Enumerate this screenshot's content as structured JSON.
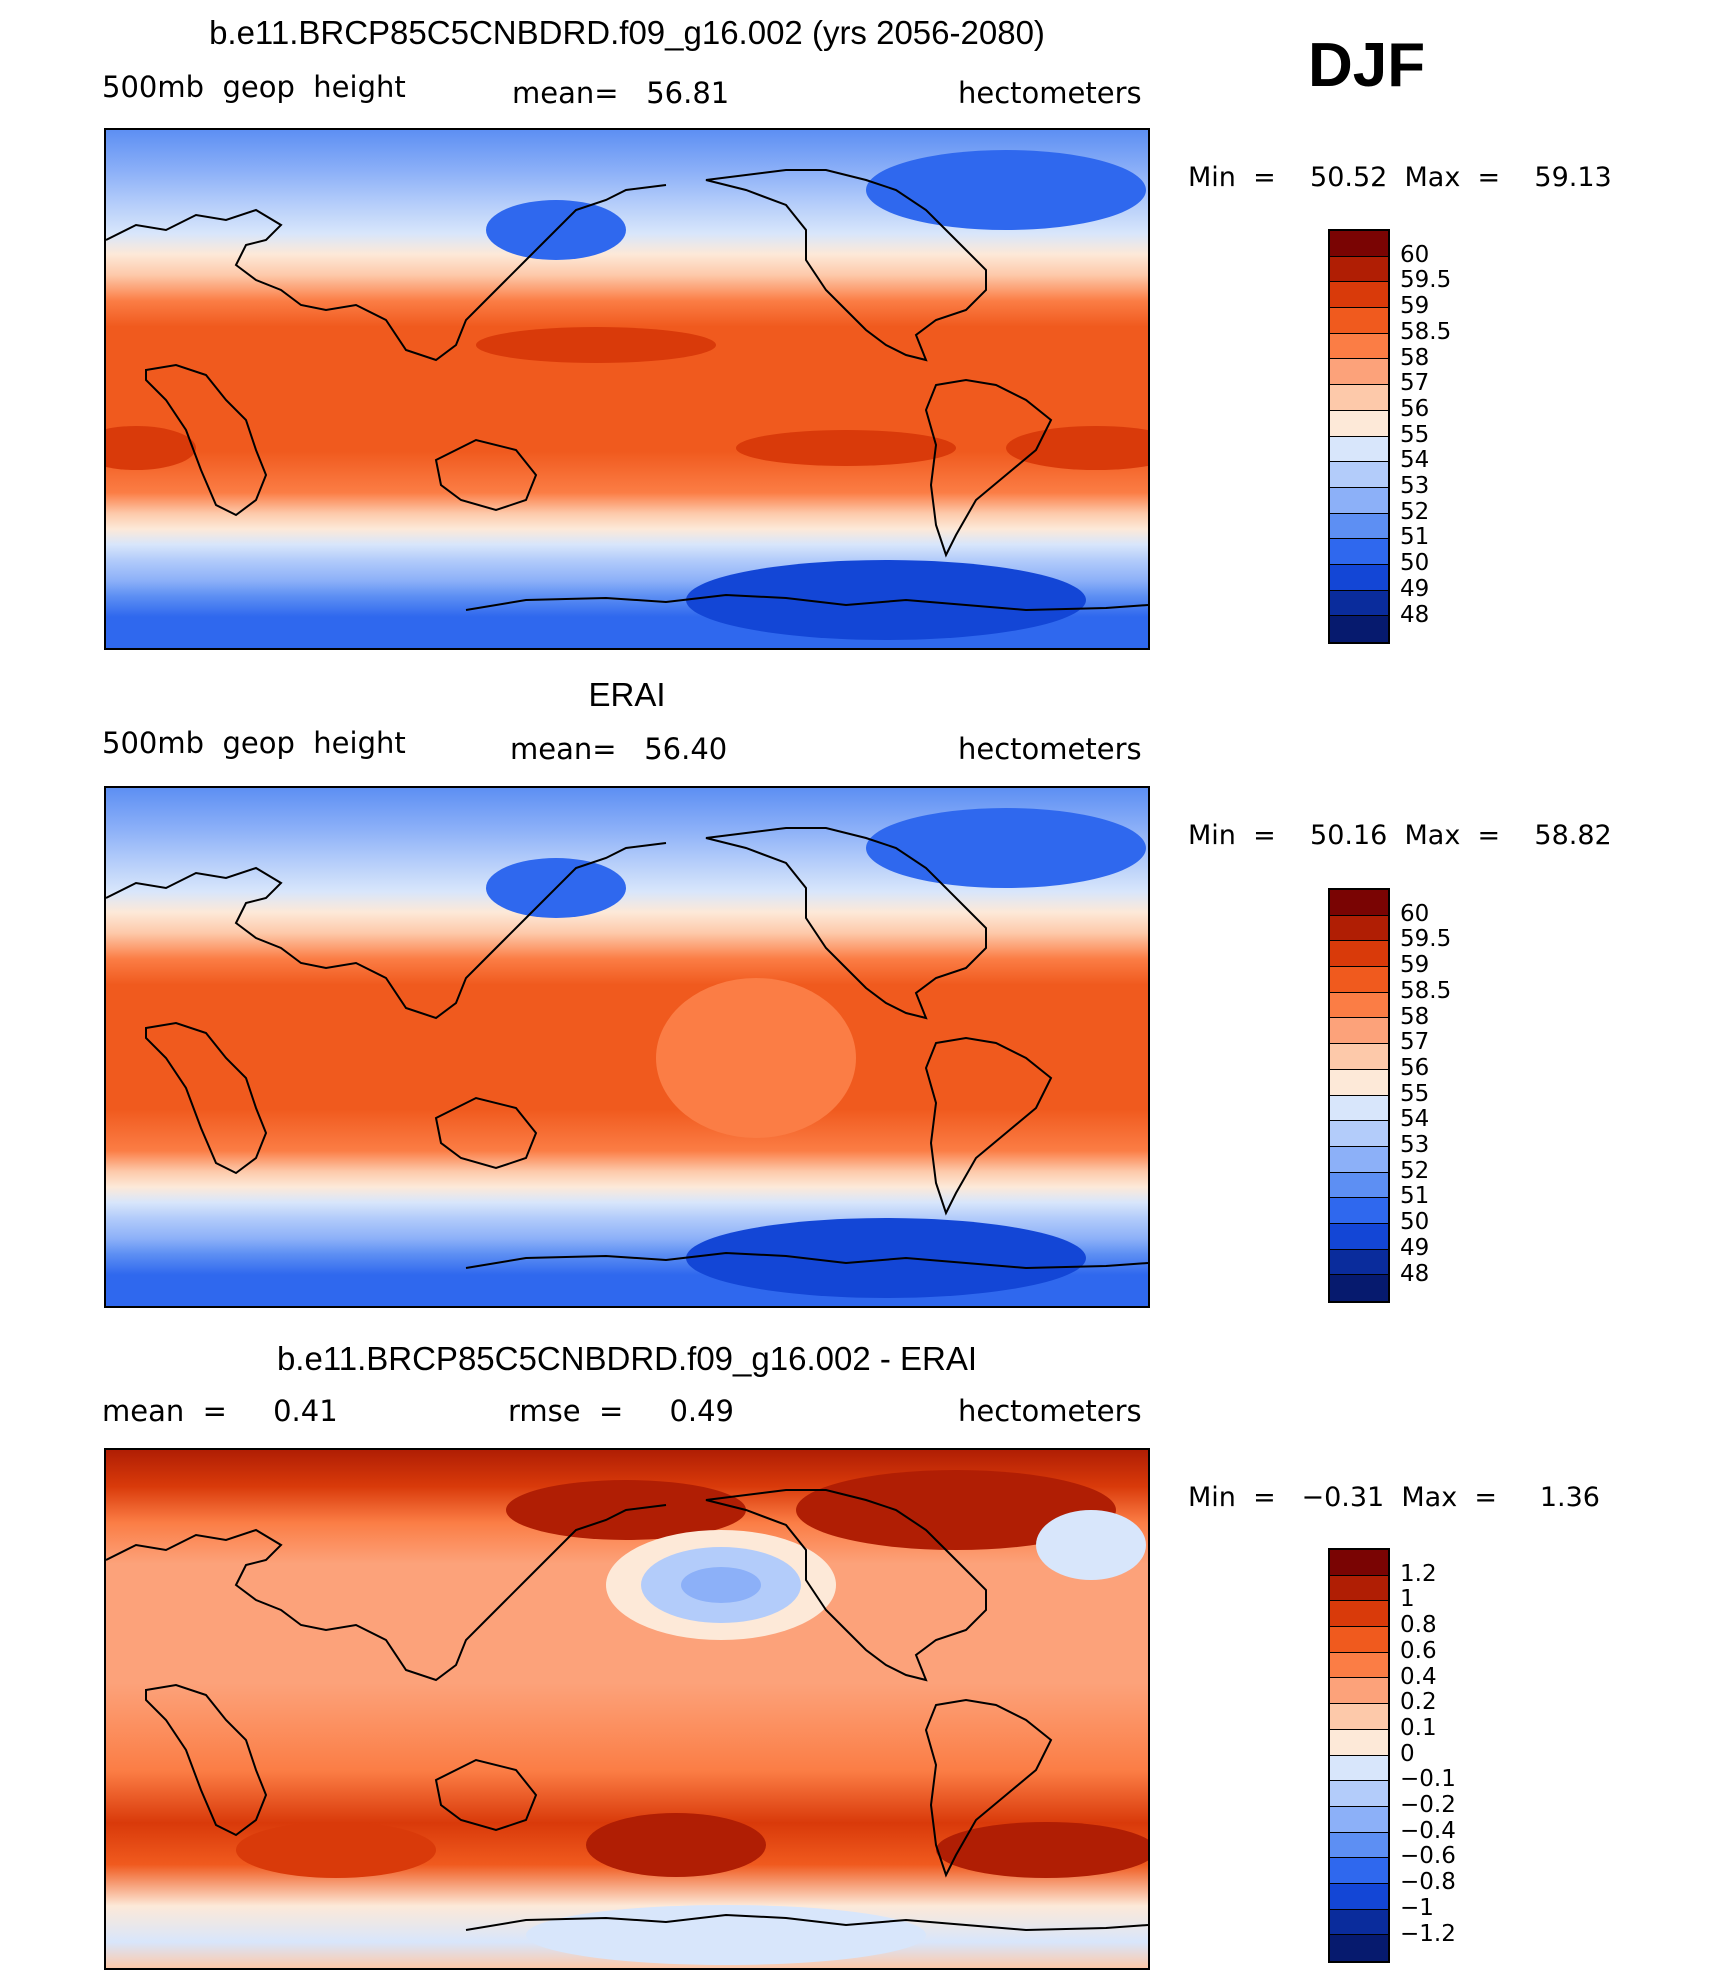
{
  "season": "DJF",
  "panels": [
    {
      "title": "b.e11.BRCP85C5CNBDRD.f09_g16.002 (yrs 2056-2080)",
      "left_label": "500mb  geop  height",
      "mid_label": "mean=   56.81",
      "units": "hectometers",
      "minmax": "Min  =    50.52  Max  =    59.13",
      "legend_labels": [
        "60",
        "59.5",
        "59",
        "58.5",
        "58",
        "57",
        "56",
        "55",
        "54",
        "53",
        "52",
        "51",
        "50",
        "49",
        "48"
      ],
      "legend_colors": [
        "#7a0403",
        "#b01e04",
        "#d93a0a",
        "#f05a1e",
        "#fb7d45",
        "#fca27a",
        "#fdc9aa",
        "#fde9d8",
        "#d8e6fb",
        "#b3ccfa",
        "#8cb0f8",
        "#5d8ff3",
        "#2f68ee",
        "#1346d6",
        "#0a2c9c",
        "#061a6e"
      ],
      "map_type": "clim"
    },
    {
      "title": "ERAI",
      "left_label": "500mb  geop  height",
      "mid_label": "mean=   56.40",
      "units": "hectometers",
      "minmax": "Min  =    50.16  Max  =    58.82",
      "legend_labels": [
        "60",
        "59.5",
        "59",
        "58.5",
        "58",
        "57",
        "56",
        "55",
        "54",
        "53",
        "52",
        "51",
        "50",
        "49",
        "48"
      ],
      "legend_colors": [
        "#7a0403",
        "#b01e04",
        "#d93a0a",
        "#f05a1e",
        "#fb7d45",
        "#fca27a",
        "#fdc9aa",
        "#fde9d8",
        "#d8e6fb",
        "#b3ccfa",
        "#8cb0f8",
        "#5d8ff3",
        "#2f68ee",
        "#1346d6",
        "#0a2c9c",
        "#061a6e"
      ],
      "map_type": "clim"
    },
    {
      "title": "b.e11.BRCP85C5CNBDRD.f09_g16.002 - ERAI",
      "left_label": "mean  =     0.41",
      "mid_label": "rmse  =     0.49",
      "units": "hectometers",
      "minmax": "Min  =   −0.31  Max  =     1.36",
      "legend_labels": [
        "1.2",
        "1",
        "0.8",
        "0.6",
        "0.4",
        "0.2",
        "0.1",
        "0",
        "−0.1",
        "−0.2",
        "−0.4",
        "−0.6",
        "−0.8",
        "−1",
        "−1.2"
      ],
      "legend_colors": [
        "#7a0403",
        "#b01e04",
        "#d93a0a",
        "#f05a1e",
        "#fb7d45",
        "#fca27a",
        "#fdc9aa",
        "#fde9d8",
        "#d8e6fb",
        "#b3ccfa",
        "#8cb0f8",
        "#5d8ff3",
        "#2f68ee",
        "#1346d6",
        "#0a2c9c",
        "#061a6e"
      ],
      "map_type": "diff"
    }
  ]
}
